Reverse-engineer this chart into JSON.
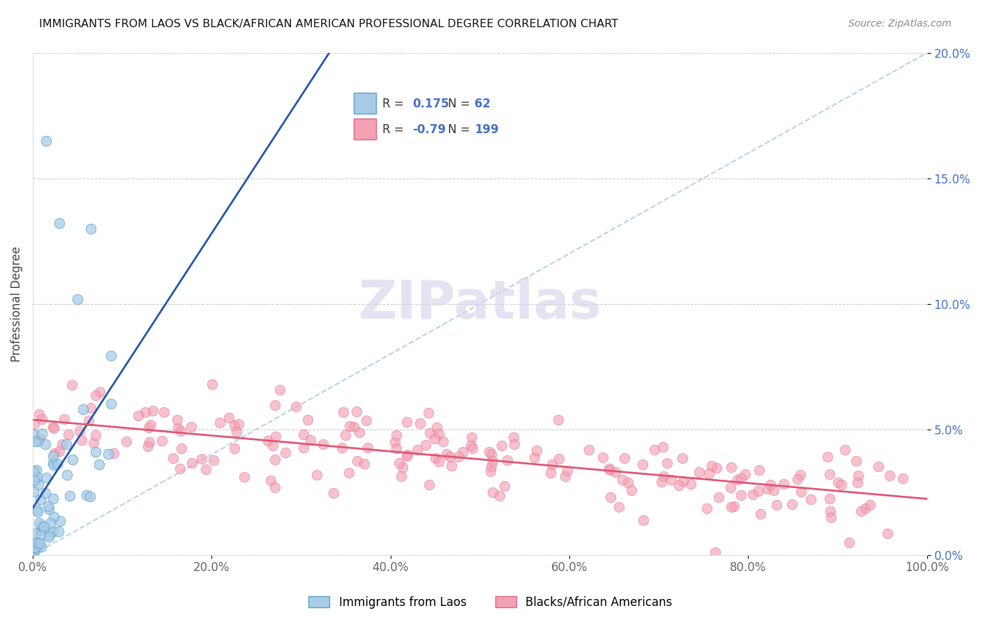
{
  "title": "IMMIGRANTS FROM LAOS VS BLACK/AFRICAN AMERICAN PROFESSIONAL DEGREE CORRELATION CHART",
  "source": "Source: ZipAtlas.com",
  "ylabel": "Professional Degree",
  "xlim": [
    0,
    100
  ],
  "ylim": [
    0,
    20
  ],
  "xticks": [
    0,
    20,
    40,
    60,
    80,
    100
  ],
  "yticks": [
    0,
    5,
    10,
    15,
    20
  ],
  "xtick_labels": [
    "0.0%",
    "20.0%",
    "40.0%",
    "60.0%",
    "80.0%",
    "100.0%"
  ],
  "ytick_labels": [
    "0.0%",
    "5.0%",
    "10.0%",
    "15.0%",
    "20.0%"
  ],
  "blue_R": 0.175,
  "blue_N": 62,
  "pink_R": -0.79,
  "pink_N": 199,
  "blue_color": "#a8cce8",
  "pink_color": "#f4a0b5",
  "blue_edge": "#5a9ec9",
  "pink_edge": "#e06080",
  "trend_blue": "#2255aa",
  "trend_pink": "#e05575",
  "diag_color": "#b8d0f0",
  "watermark": "ZIPatlas",
  "watermark_color": "#d8d0e8",
  "legend_label_blue": "Immigrants from Laos",
  "legend_label_pink": "Blacks/African Americans",
  "background_color": "#ffffff",
  "blue_seed": 42,
  "pink_seed": 7
}
